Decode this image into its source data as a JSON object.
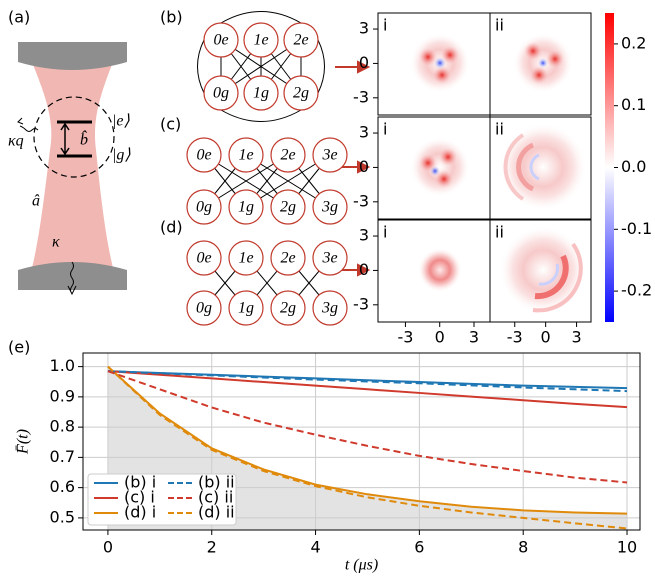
{
  "panel_labels": [
    "(a)",
    "(b)",
    "(c)",
    "(d)",
    "(e)"
  ],
  "cavity": {
    "excited": "|e⟩",
    "ground": "|g⟩",
    "qubit": "b̂",
    "mode": "â",
    "cavity_loss": "κ",
    "qubit_loss": "κq"
  },
  "diagrams": [
    {
      "top": [
        "0e",
        "1e",
        "2e"
      ],
      "bottom": [
        "0g",
        "1g",
        "2g"
      ]
    },
    {
      "top": [
        "0e",
        "1e",
        "2e",
        "3e"
      ],
      "bottom": [
        "0g",
        "1g",
        "2g",
        "3g"
      ]
    },
    {
      "top": [
        "0e",
        "1e",
        "2e",
        "3e"
      ],
      "bottom": [
        "0g",
        "1g",
        "2g",
        "3g"
      ]
    }
  ],
  "wigner": {
    "columns": [
      "i",
      "ii"
    ],
    "xlim": [
      -5.4,
      4.4
    ],
    "ylim": [
      -4.5,
      4.4
    ],
    "xticks": [
      -3,
      0,
      3
    ],
    "yticks": [
      3,
      0,
      -3
    ],
    "clim": [
      -0.25,
      0.25
    ],
    "cticks": [
      0.2,
      0.1,
      {
        "value": 0,
        "label": "0.0"
      },
      -0.1,
      -0.2
    ]
  },
  "chart_data": {
    "type": "line",
    "xlabel": "t (μs)",
    "ylabel": "F̄(t)",
    "x": [
      0,
      1,
      2,
      3,
      4,
      5,
      6,
      7,
      8,
      9,
      10
    ],
    "xlim": [
      -0.48,
      10.25
    ],
    "ylim": [
      0.46,
      1.045
    ],
    "xticks": [
      0,
      2,
      4,
      6,
      8,
      10
    ],
    "yticks": [
      0.5,
      0.6,
      0.7,
      0.8,
      0.9,
      {
        "value": 1,
        "label": "1.0"
      }
    ],
    "grid": true,
    "legend": "lower left",
    "legend_columns": 2,
    "series": [
      {
        "name": "(b) i",
        "color": "#1f77b4",
        "dash": false,
        "values": [
          0.985,
          0.979,
          0.973,
          0.967,
          0.961,
          0.955,
          0.949,
          0.943,
          0.937,
          0.933,
          0.929
        ]
      },
      {
        "name": "(c) i",
        "color": "#d03a2c",
        "dash": false,
        "values": [
          0.985,
          0.973,
          0.961,
          0.949,
          0.937,
          0.925,
          0.913,
          0.901,
          0.889,
          0.877,
          0.866
        ]
      },
      {
        "name": "(d) i",
        "color": "#e08a0b",
        "dash": false,
        "area_color": "#e3e3e3",
        "values": [
          1.0,
          0.845,
          0.73,
          0.66,
          0.61,
          0.578,
          0.555,
          0.537,
          0.525,
          0.518,
          0.514
        ]
      },
      {
        "name": "(b) ii",
        "color": "#1f77b4",
        "dash": true,
        "values": [
          0.985,
          0.978,
          0.971,
          0.964,
          0.957,
          0.951,
          0.945,
          0.938,
          0.931,
          0.925,
          0.919
        ]
      },
      {
        "name": "(c) ii",
        "color": "#d03a2c",
        "dash": true,
        "values": [
          0.985,
          0.925,
          0.865,
          0.815,
          0.775,
          0.738,
          0.705,
          0.678,
          0.655,
          0.633,
          0.617
        ]
      },
      {
        "name": "(d) ii",
        "color": "#e08a0b",
        "dash": true,
        "values": [
          1.0,
          0.84,
          0.725,
          0.655,
          0.605,
          0.568,
          0.54,
          0.518,
          0.5,
          0.482,
          0.465
        ]
      }
    ]
  }
}
